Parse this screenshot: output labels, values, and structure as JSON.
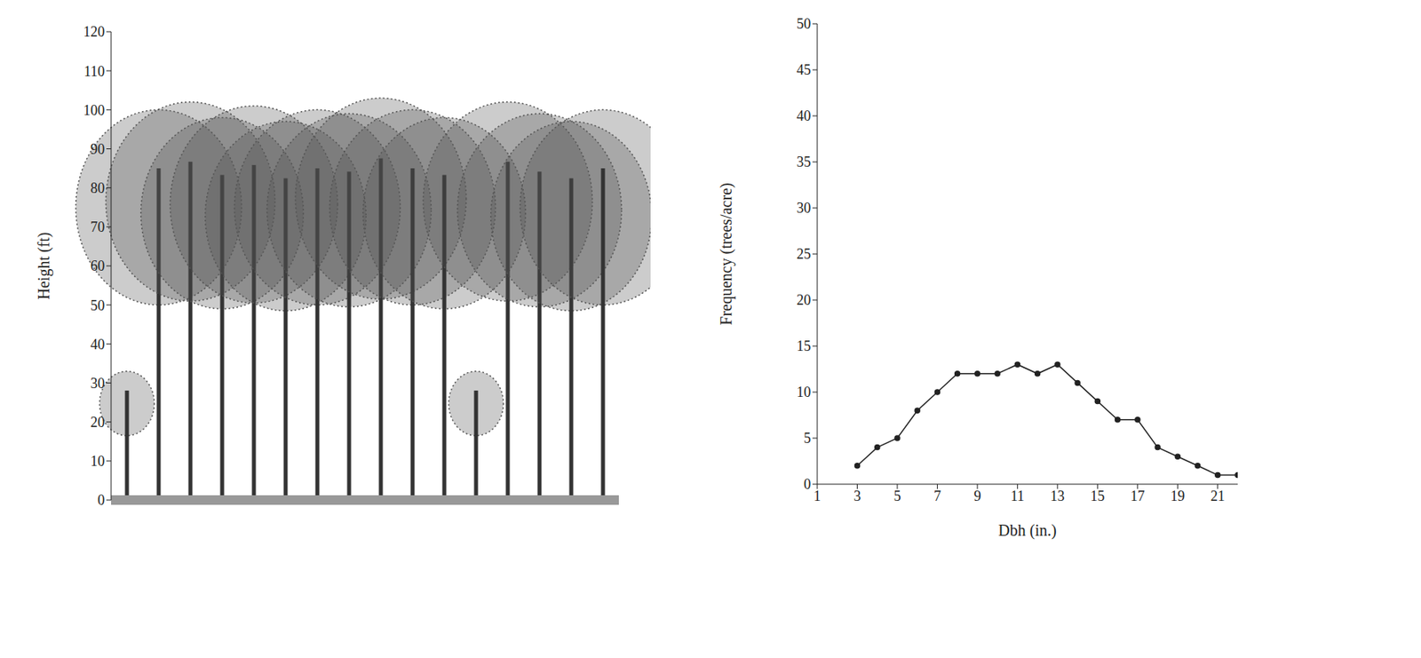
{
  "chart_data": [
    {
      "type": "tree_profile",
      "y_label": "Height (ft)",
      "categories": [
        null,
        null,
        null,
        null,
        null,
        null,
        null,
        null,
        null,
        null,
        null,
        null,
        null,
        null,
        null,
        null
      ],
      "values": [
        33,
        100,
        102,
        98,
        101,
        97,
        100,
        99,
        103,
        100,
        98,
        33,
        102,
        99,
        97,
        100
      ],
      "ylim": [
        0,
        120
      ],
      "yticks": [
        0,
        10,
        20,
        30,
        40,
        50,
        60,
        70,
        80,
        90,
        100,
        110,
        120
      ],
      "tick_labels": "y",
      "color": "#555555"
    },
    {
      "type": "line",
      "x_label": "Dbh (in.)",
      "y_label": "Frequency (trees/acre)",
      "x": [
        3,
        4,
        5,
        6,
        7,
        8,
        9,
        10,
        11,
        12,
        13,
        14,
        15,
        16,
        17,
        18,
        19,
        20,
        21,
        22
      ],
      "values": [
        2,
        4,
        5,
        8,
        10,
        12,
        12,
        12,
        13,
        12,
        13,
        11,
        9,
        7,
        7,
        4,
        3,
        2,
        1,
        1
      ],
      "xlim": [
        1,
        22
      ],
      "xticks": [
        1,
        3,
        5,
        7,
        9,
        11,
        13,
        15,
        17,
        19,
        21
      ],
      "ylim": [
        0,
        50
      ],
      "yticks": [
        0,
        5,
        10,
        15,
        20,
        25,
        30,
        35,
        40,
        45,
        50
      ],
      "color": "#222222",
      "marker": "circle"
    }
  ]
}
